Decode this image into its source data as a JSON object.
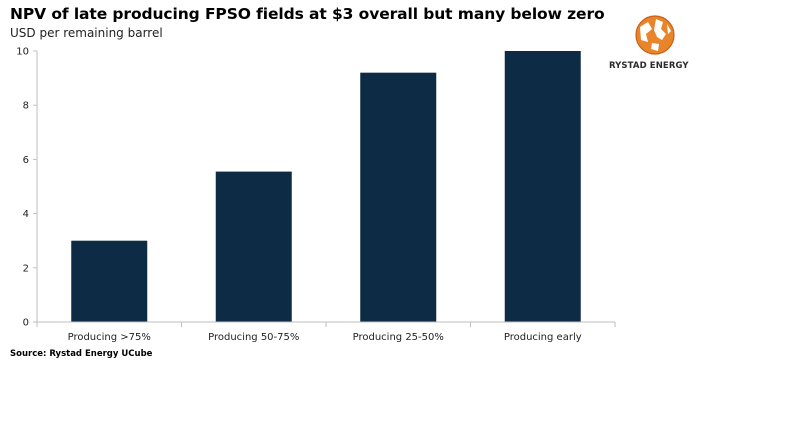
{
  "title": "NPV of late producing FPSO fields at $3 overall but many below zero",
  "subtitle": "USD per remaining barrel",
  "source": "Source: Rystad Energy UCube",
  "logo": {
    "text": "RYSTAD ENERGY",
    "icon": "rystad-globe-logo"
  },
  "colors": {
    "bar": "#0d2b45",
    "axis": "#bfbfbf",
    "logo_orange": "#e8852a"
  },
  "chart_data": {
    "type": "bar",
    "title": "NPV of late producing FPSO fields at $3 overall but many below zero",
    "ylabel": "USD per remaining barrel",
    "xlabel": "",
    "categories": [
      "Producing >75%",
      "Producing 50-75%",
      "Producing 25-50%",
      "Producing early"
    ],
    "values": [
      3.0,
      5.55,
      9.2,
      10.0
    ],
    "ylim": [
      0,
      10
    ],
    "yticks": [
      0,
      2,
      4,
      6,
      8,
      10
    ],
    "grid": false,
    "legend": "none"
  }
}
